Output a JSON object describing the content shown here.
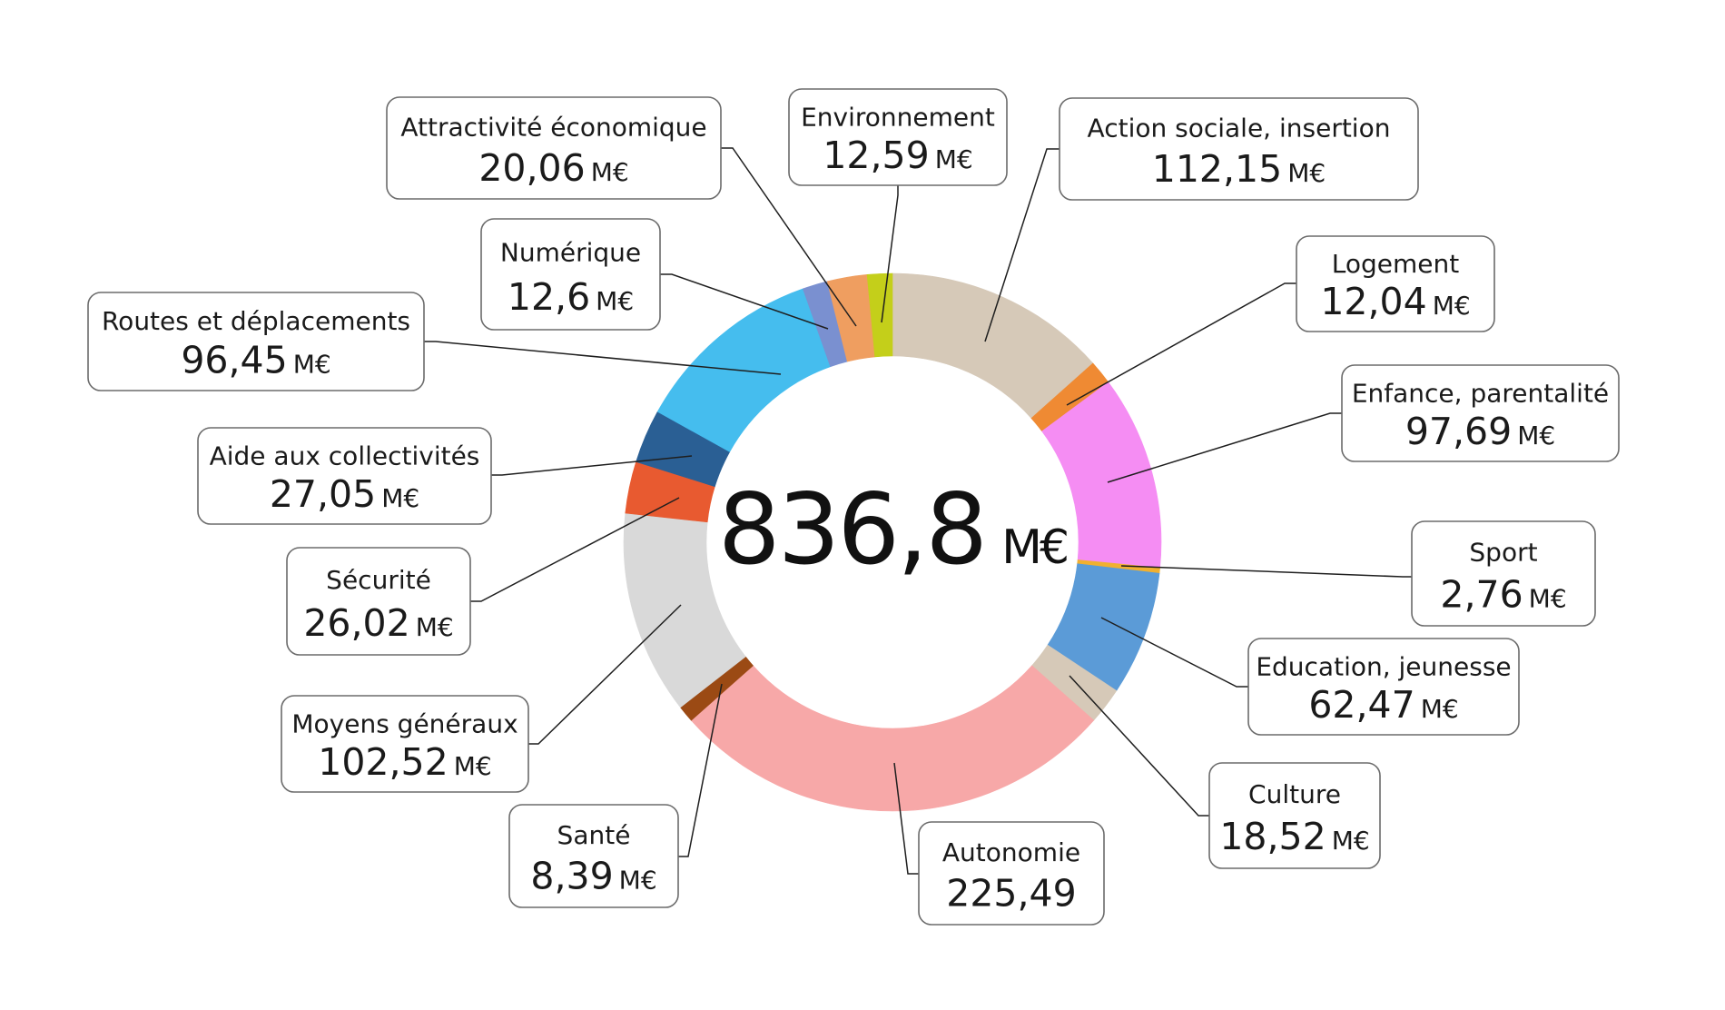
{
  "chart_data": {
    "type": "donut",
    "unit": "M€",
    "total": {
      "value": "836,8",
      "unit": "M€"
    },
    "series": [
      {
        "label": "Action sociale, insertion",
        "value": 112.15,
        "text": "112,15",
        "unit": "M€",
        "color": "#d6c9b8"
      },
      {
        "label": "Logement",
        "value": 12.04,
        "text": "12,04",
        "unit": "M€",
        "color": "#ef8a33"
      },
      {
        "label": "Enfance, parentalité",
        "value": 97.69,
        "text": "97,69",
        "unit": "M€",
        "color": "#f58df3"
      },
      {
        "label": "Sport",
        "value": 2.76,
        "text": "2,76",
        "unit": "M€",
        "color": "#f0b030"
      },
      {
        "label": "Education, jeunesse",
        "value": 62.47,
        "text": "62,47",
        "unit": "M€",
        "color": "#5b9bd7"
      },
      {
        "label": "Culture",
        "value": 18.52,
        "text": "18,52",
        "unit": "M€",
        "color": "#d6c9b8"
      },
      {
        "label": "Autonomie",
        "value": 225.49,
        "text": "225,49",
        "unit": "",
        "color": "#f7a8a8"
      },
      {
        "label": "Santé",
        "value": 8.39,
        "text": "8,39",
        "unit": "M€",
        "color": "#9b4a14"
      },
      {
        "label": "Moyens généraux",
        "value": 102.52,
        "text": "102,52",
        "unit": "M€",
        "color": "#d9d9d9"
      },
      {
        "label": "Sécurité",
        "value": 26.02,
        "text": "26,02",
        "unit": "M€",
        "color": "#e85a30"
      },
      {
        "label": "Aide aux collectivités",
        "value": 27.05,
        "text": "27,05",
        "unit": "M€",
        "color": "#2a5f94"
      },
      {
        "label": "Routes et déplacements",
        "value": 96.45,
        "text": "96,45",
        "unit": "M€",
        "color": "#45bdee"
      },
      {
        "label": "Numérique",
        "value": 12.6,
        "text": "12,6",
        "unit": "M€",
        "color": "#7a90d0"
      },
      {
        "label": "Attractivité économique",
        "value": 20.06,
        "text": "20,06",
        "unit": "M€",
        "color": "#ef9e60"
      },
      {
        "label": "Environnement",
        "value": 12.59,
        "text": "12,59",
        "unit": "M€",
        "color": "#c4cf1a"
      }
    ]
  }
}
